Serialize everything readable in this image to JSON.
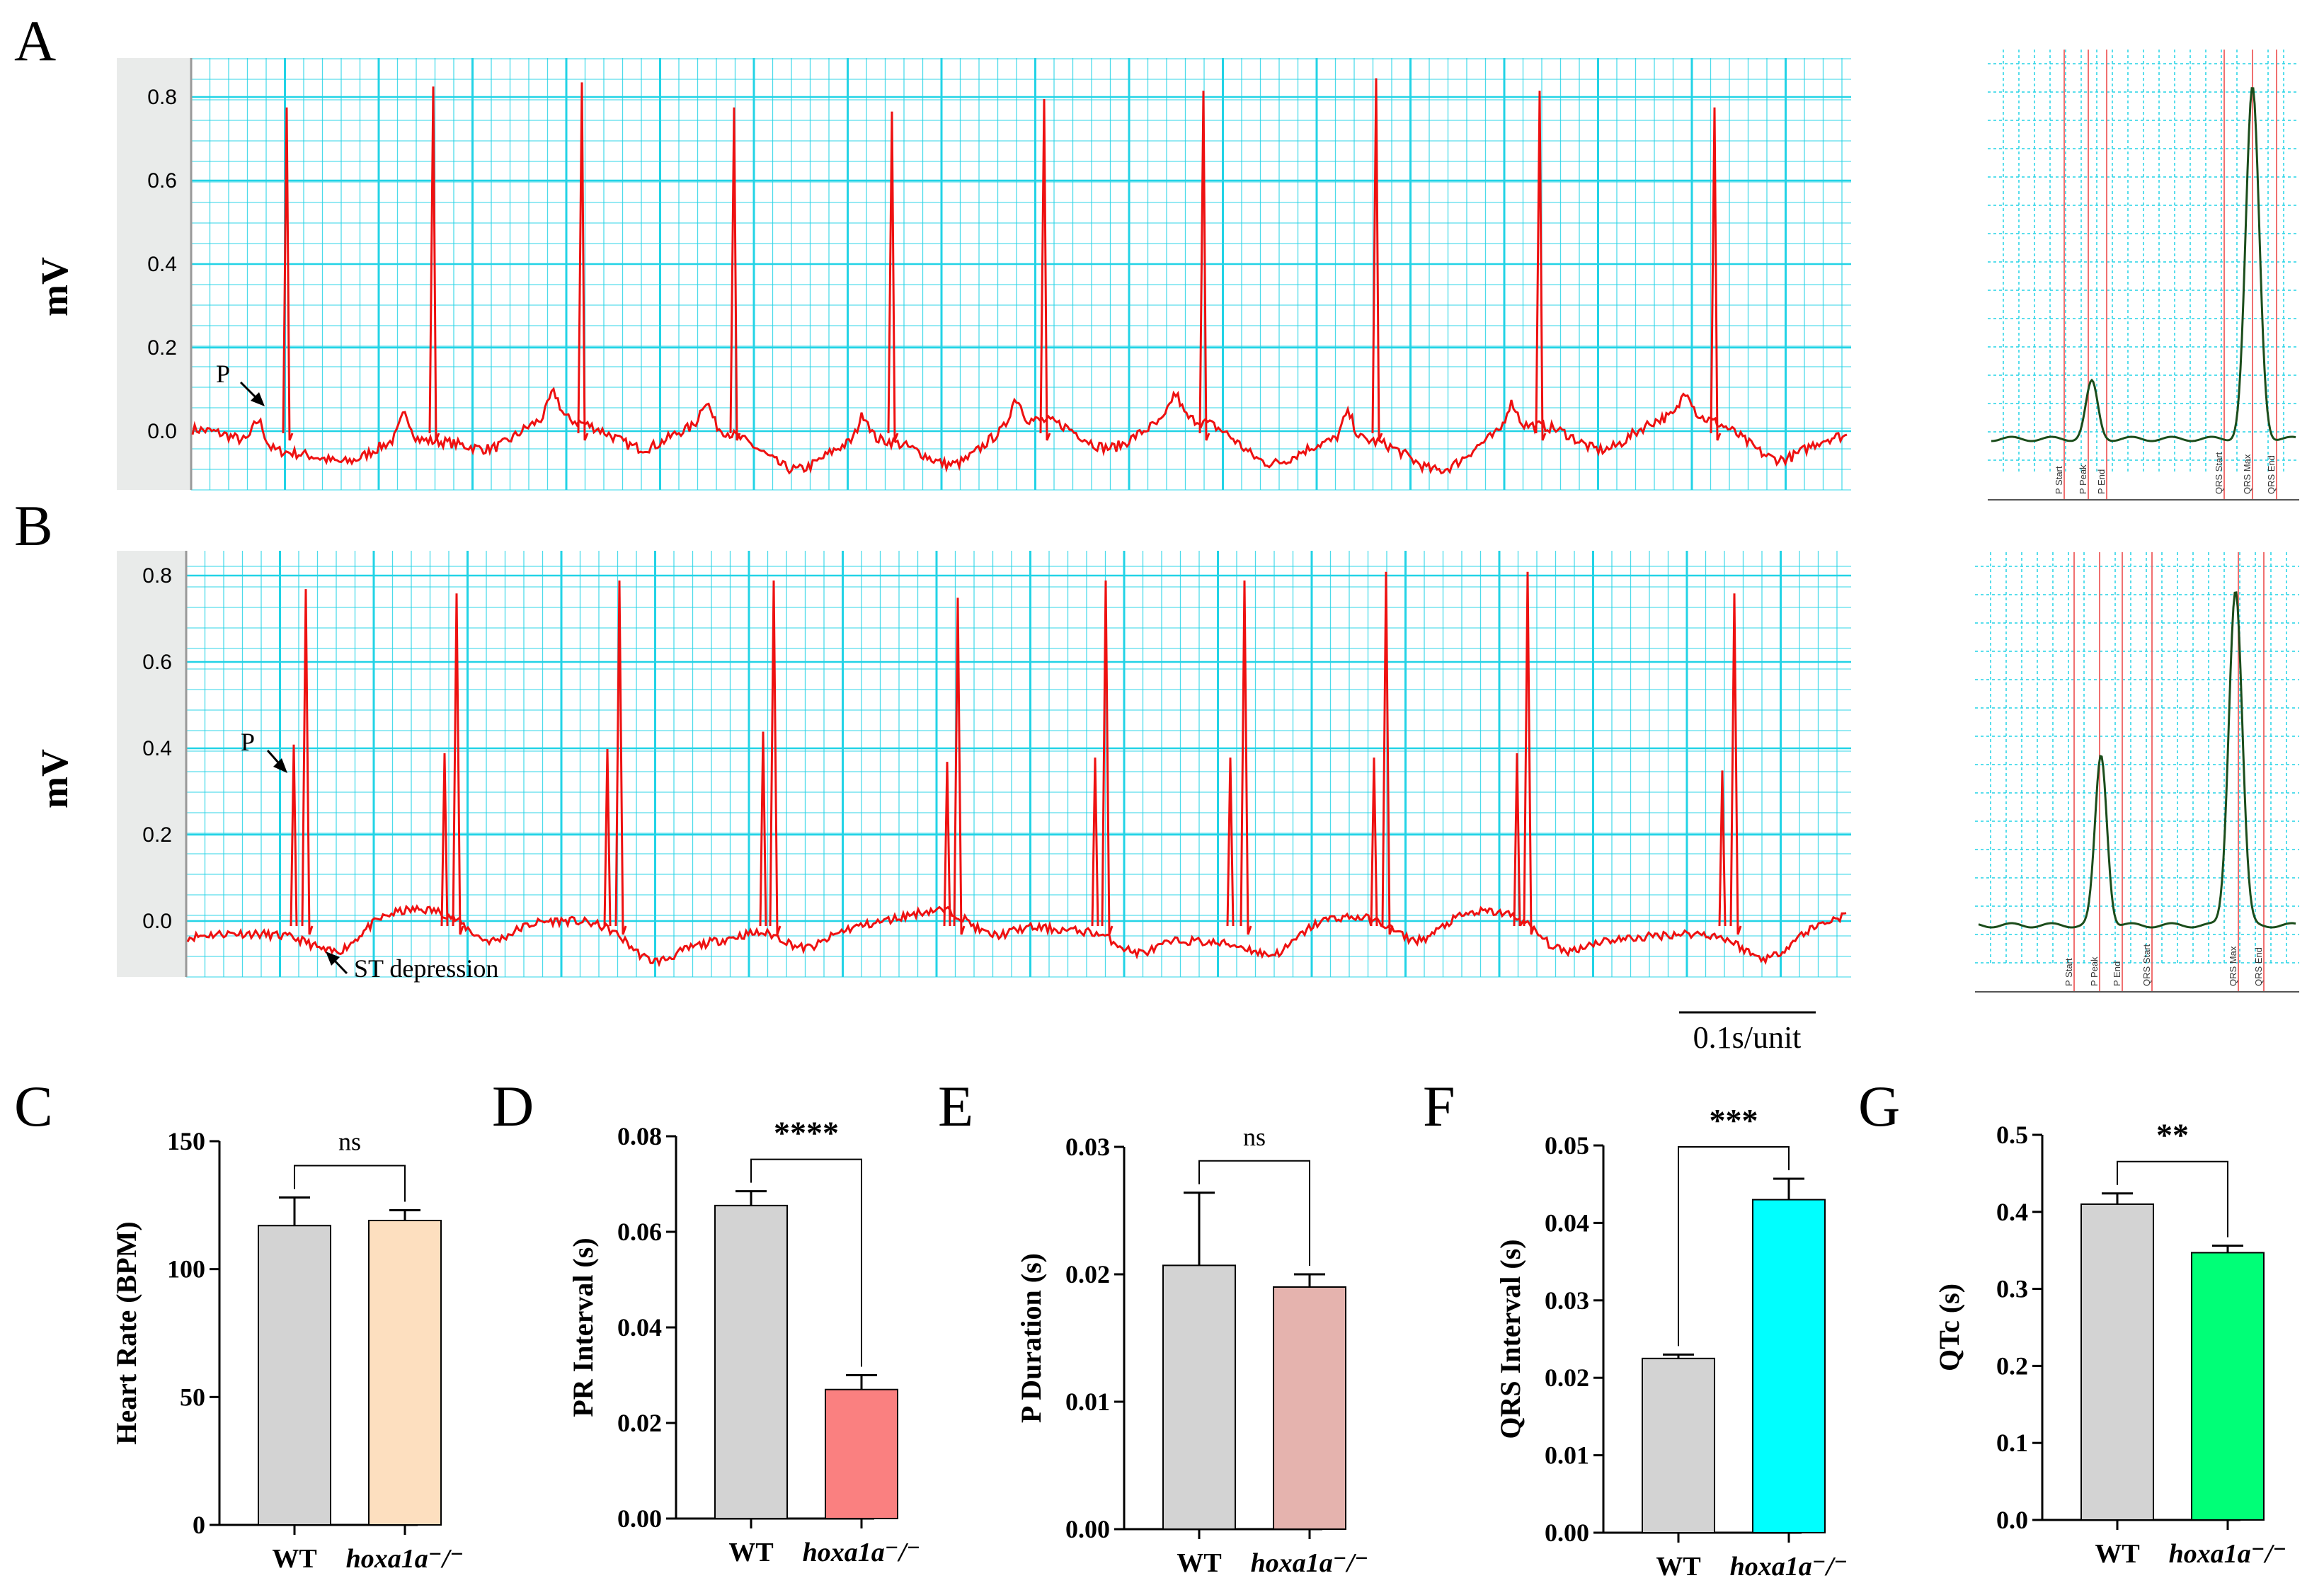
{
  "panel_labels": {
    "A": "A",
    "B": "B",
    "C": "C",
    "D": "D",
    "E": "E",
    "F": "F",
    "G": "G"
  },
  "ecg": {
    "ylabel": "mV",
    "ytick_labels": [
      "0.0",
      "0.2",
      "0.4",
      "0.6",
      "0.8"
    ],
    "scale_bar_label": "0.1s/unit",
    "trace_color": "#ee1111",
    "grid_color": "#22d3e6",
    "A": {
      "p_label": "P"
    },
    "B": {
      "p_label": "P",
      "st_label": "ST depression"
    }
  },
  "average_beats": {
    "A": {
      "markers": [
        "P Start",
        "P Peak",
        "P End",
        "QRS Start",
        "QRS Max",
        "QRS End"
      ]
    },
    "B": {
      "markers": [
        "P Start",
        "P Peak",
        "P End",
        "QRS Start",
        "QRS Max",
        "QRS End"
      ]
    }
  },
  "chart_data": [
    {
      "id": "C",
      "type": "bar",
      "categories": [
        "WT",
        "hoxa1a⁻/⁻"
      ],
      "values": [
        117,
        119
      ],
      "errors": [
        11,
        4
      ],
      "colors": [
        "#d3d3d3",
        "#fddfbf"
      ],
      "ylabel": "Heart Rate (BPM)",
      "ylim": [
        0,
        150
      ],
      "yticks": [
        0,
        50,
        100,
        150
      ],
      "ytick_labels": [
        "0",
        "50",
        "100",
        "150"
      ],
      "significance": "ns"
    },
    {
      "id": "D",
      "type": "bar",
      "categories": [
        "WT",
        "hoxa1a⁻/⁻"
      ],
      "values": [
        0.0655,
        0.027
      ],
      "errors": [
        0.003,
        0.003
      ],
      "colors": [
        "#d3d3d3",
        "#fa8080"
      ],
      "ylabel": "PR Interval  (s)",
      "ylim": [
        0,
        0.08
      ],
      "yticks": [
        0,
        0.02,
        0.04,
        0.06,
        0.08
      ],
      "ytick_labels": [
        "0.00",
        "0.02",
        "0.04",
        "0.06",
        "0.08"
      ],
      "significance": "****"
    },
    {
      "id": "E",
      "type": "bar",
      "categories": [
        "WT",
        "hoxa1a⁻/⁻"
      ],
      "values": [
        0.0207,
        0.019
      ],
      "errors": [
        0.0057,
        0.001
      ],
      "colors": [
        "#d3d3d3",
        "#e5b3ae"
      ],
      "ylabel": "P Duration  (s)",
      "ylim": [
        0,
        0.03
      ],
      "yticks": [
        0,
        0.01,
        0.02,
        0.03
      ],
      "ytick_labels": [
        "0.00",
        "0.01",
        "0.02",
        "0.03"
      ],
      "significance": "ns"
    },
    {
      "id": "F",
      "type": "bar",
      "categories": [
        "WT",
        "hoxa1a⁻/⁻"
      ],
      "values": [
        0.0225,
        0.043
      ],
      "errors": [
        0.0005,
        0.0027
      ],
      "colors": [
        "#d3d3d3",
        "#00ffff"
      ],
      "ylabel": "QRS Interval  (s)",
      "ylim": [
        0,
        0.05
      ],
      "yticks": [
        0,
        0.01,
        0.02,
        0.03,
        0.04,
        0.05
      ],
      "ytick_labels": [
        "0.00",
        "0.01",
        "0.02",
        "0.03",
        "0.04",
        "0.05"
      ],
      "significance": "***"
    },
    {
      "id": "G",
      "type": "bar",
      "categories": [
        "WT",
        "hoxa1a⁻/⁻"
      ],
      "values": [
        0.41,
        0.347
      ],
      "errors": [
        0.014,
        0.009
      ],
      "colors": [
        "#d3d3d3",
        "#00ff77"
      ],
      "ylabel": "QTc (s)",
      "ylim": [
        0,
        0.5
      ],
      "yticks": [
        0,
        0.1,
        0.2,
        0.3,
        0.4,
        0.5
      ],
      "ytick_labels": [
        "0.0",
        "0.1",
        "0.2",
        "0.3",
        "0.4",
        "0.5"
      ],
      "significance": "**"
    }
  ]
}
